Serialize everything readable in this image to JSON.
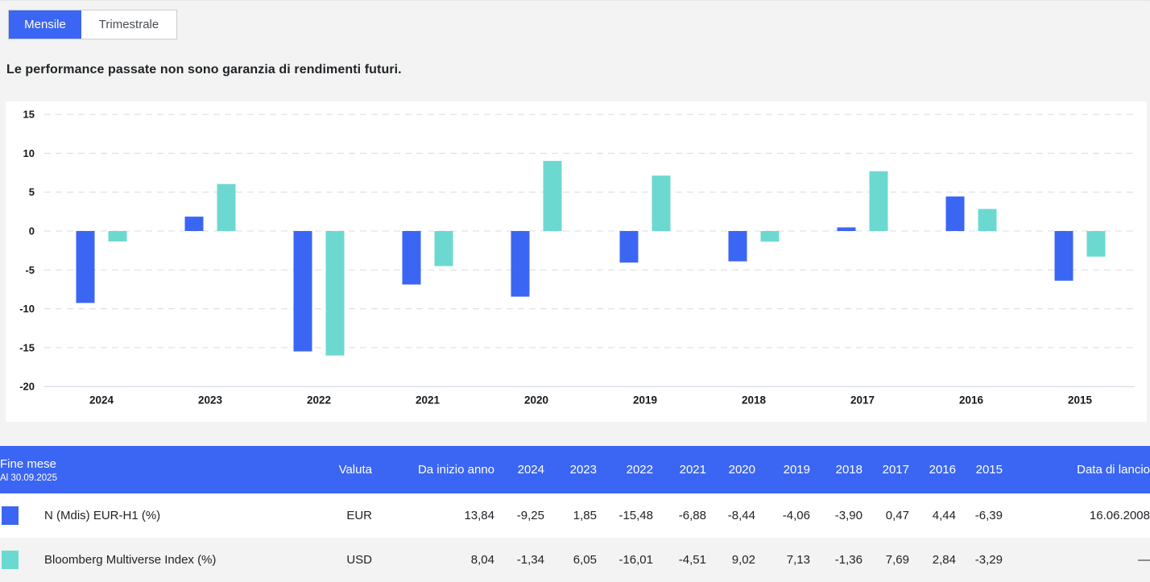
{
  "tabs": [
    {
      "label": "Mensile",
      "active": true
    },
    {
      "label": "Trimestrale",
      "active": false
    }
  ],
  "disclaimer": "Le performance passate non sono garanzia di rendimenti futuri.",
  "colors": {
    "accent_blue": "#3B66F3",
    "series_teal": "#6CD9D1",
    "page_background": "#F2F3F2",
    "grid_line": "#DCDCDC",
    "axis_line": "#C8D4DB"
  },
  "chart_data": {
    "type": "bar",
    "categories": [
      "2024",
      "2023",
      "2022",
      "2021",
      "2020",
      "2019",
      "2018",
      "2017",
      "2016",
      "2015"
    ],
    "series": [
      {
        "name": "N (Mdis) EUR-H1 (%)",
        "color": "#3B66F3",
        "values": [
          -9.25,
          1.85,
          -15.48,
          -6.88,
          -8.44,
          -4.06,
          -3.9,
          0.47,
          4.44,
          -6.39
        ]
      },
      {
        "name": "Bloomberg Multiverse Index (%)",
        "color": "#6CD9D1",
        "values": [
          -1.34,
          6.05,
          -16.01,
          -4.51,
          9.02,
          7.13,
          -1.36,
          7.69,
          2.84,
          -3.29
        ]
      }
    ],
    "title": "",
    "xlabel": "",
    "ylabel": "",
    "ylim": [
      -20,
      15
    ],
    "yticks": [
      15,
      10,
      5,
      0,
      -5,
      -10,
      -15,
      -20
    ],
    "grid": "horizontal-dashed",
    "legend_position": "none"
  },
  "table": {
    "header": {
      "title": "Fine mese",
      "subtitle": "Al 30.09.2025",
      "currency": "Valuta",
      "ytd": "Da inizio anno",
      "years": [
        "2024",
        "2023",
        "2022",
        "2021",
        "2020",
        "2019",
        "2018",
        "2017",
        "2016",
        "2015"
      ],
      "launch": "Data di lancio"
    },
    "rows": [
      {
        "name": "N (Mdis) EUR-H1 (%)",
        "swatch_color": "#3B66F3",
        "currency": "EUR",
        "ytd": "13,84",
        "values": [
          "-9,25",
          "1,85",
          "-15,48",
          "-6,88",
          "-8,44",
          "-4,06",
          "-3,90",
          "0,47",
          "4,44",
          "-6,39"
        ],
        "launch": "16.06.2008"
      },
      {
        "name": "Bloomberg Multiverse Index (%)",
        "swatch_color": "#6CD9D1",
        "currency": "USD",
        "ytd": "8,04",
        "values": [
          "-1,34",
          "6,05",
          "-16,01",
          "-4,51",
          "9,02",
          "7,13",
          "-1,36",
          "7,69",
          "2,84",
          "-3,29"
        ],
        "launch": "—"
      }
    ]
  }
}
